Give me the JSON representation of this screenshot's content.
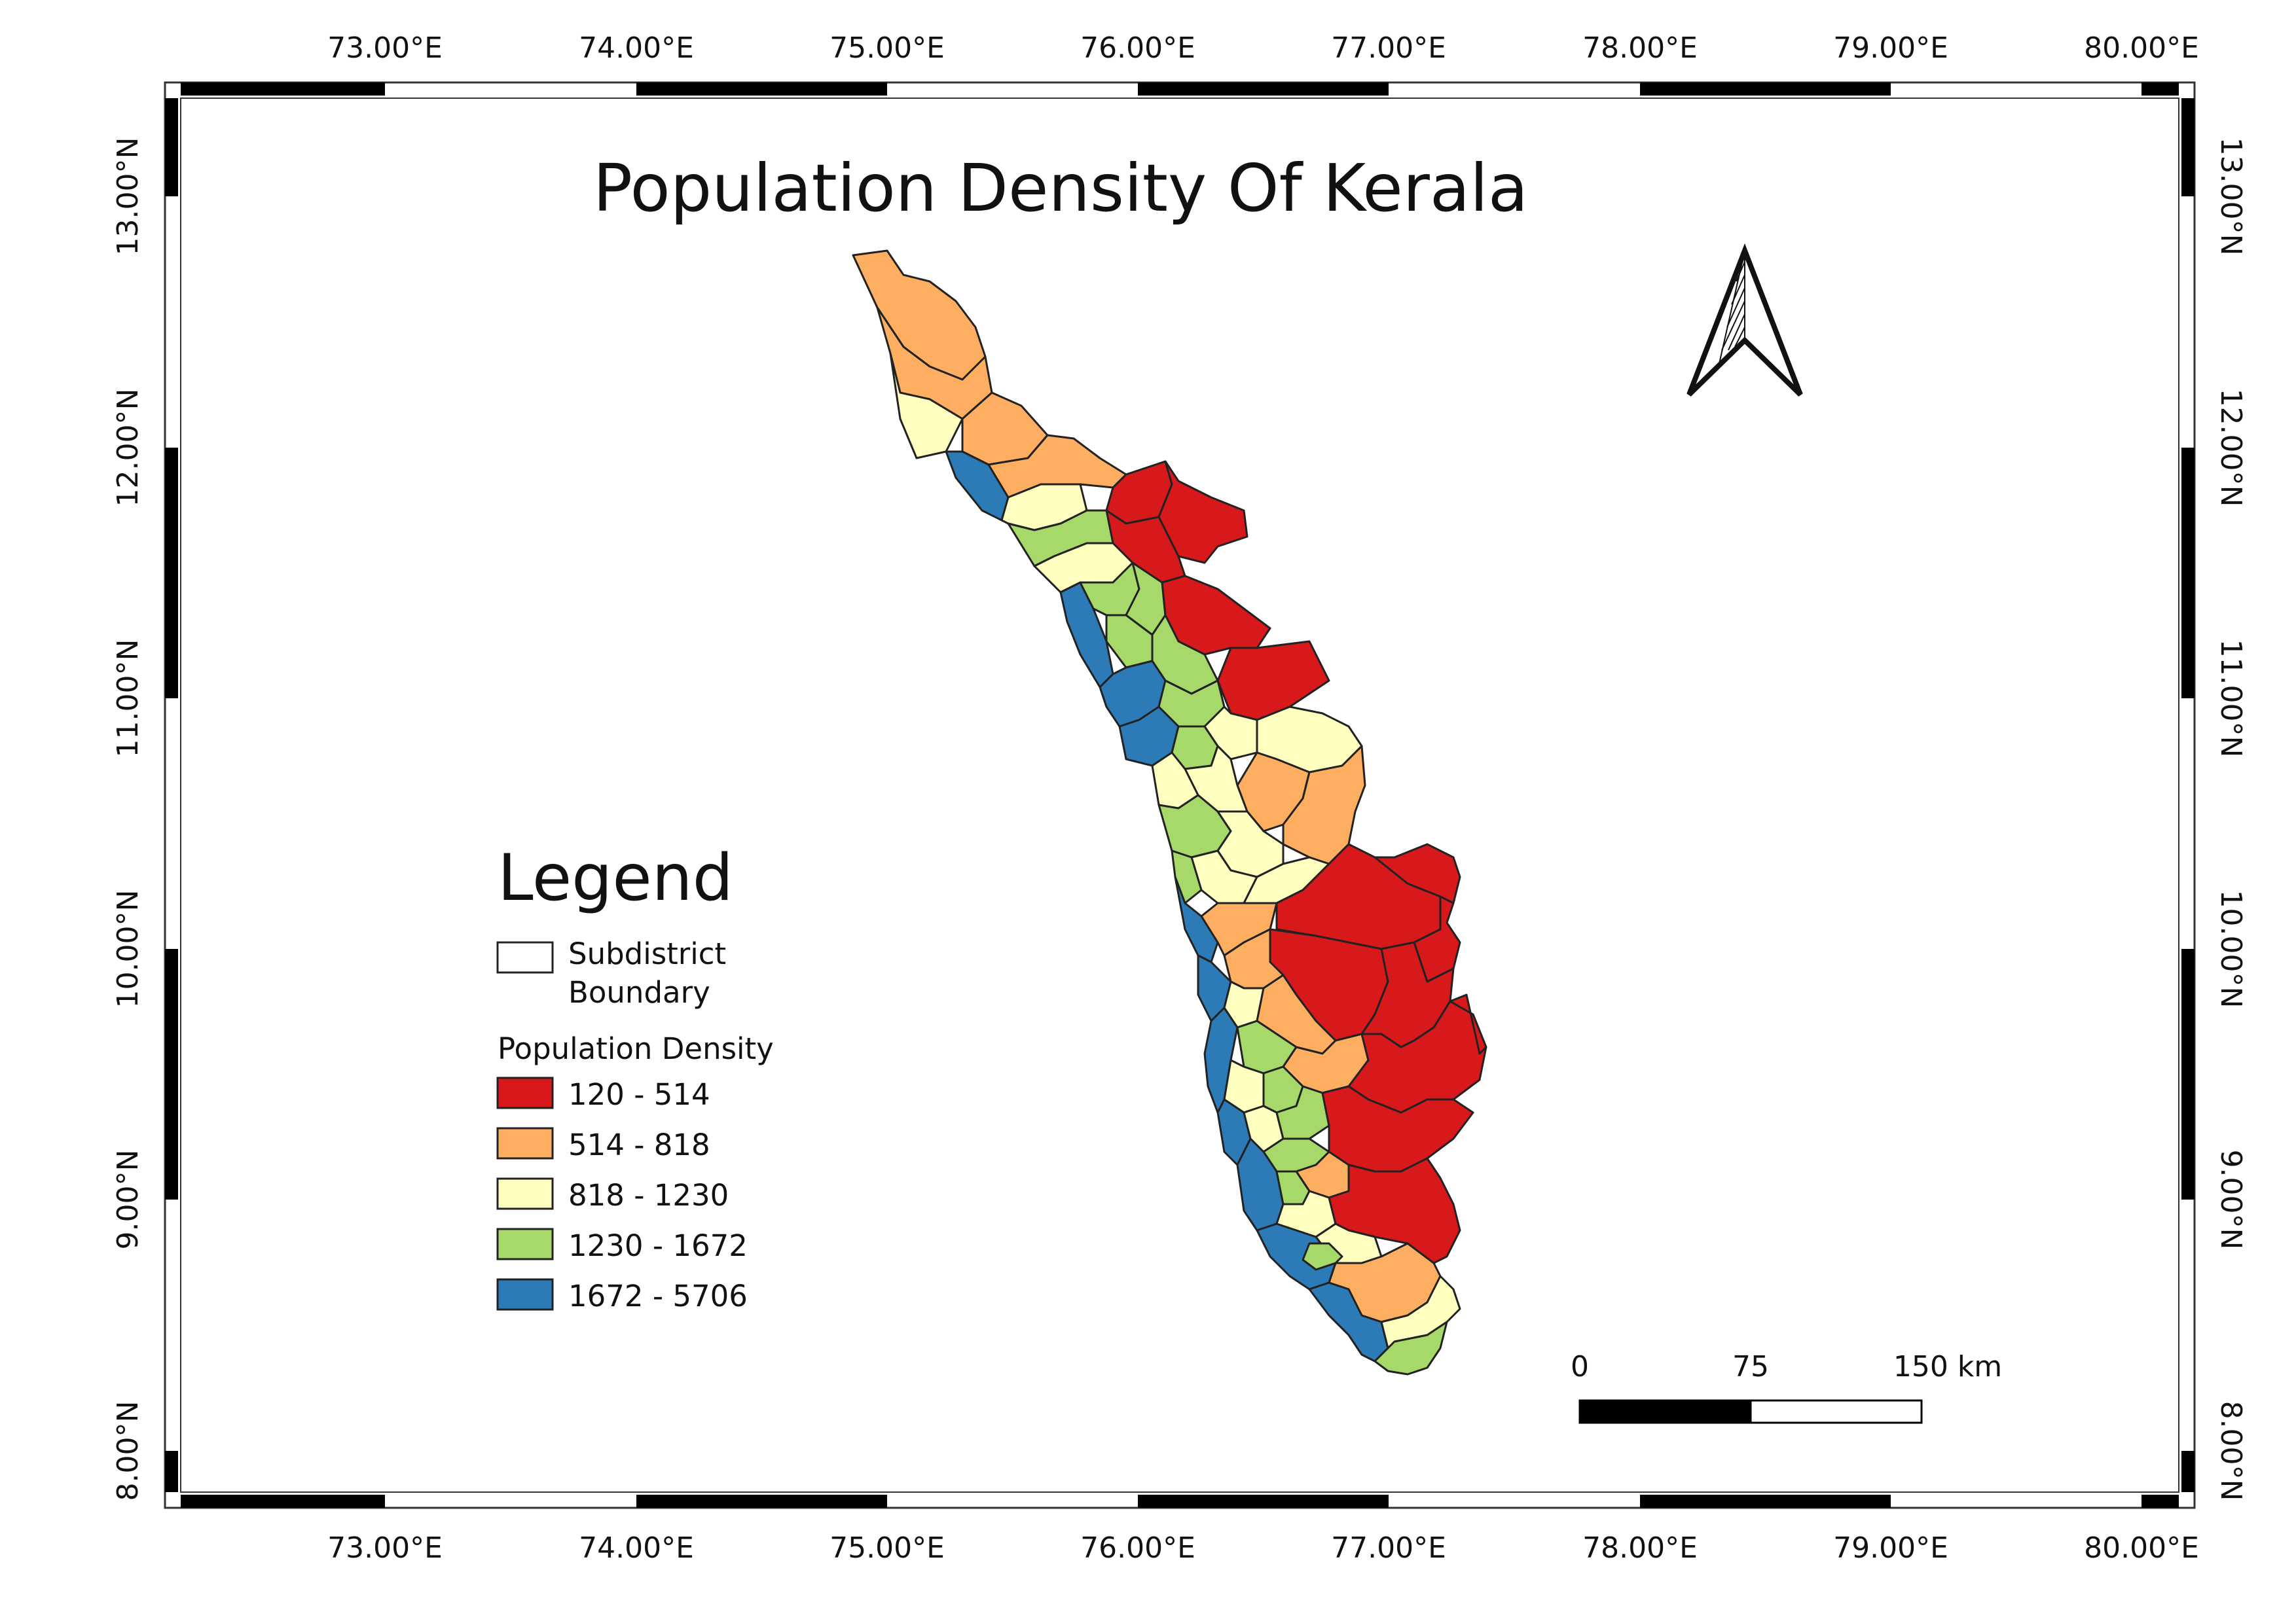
{
  "map": {
    "title": "Population Density Of Kerala",
    "grid_lon_labels": [
      "73.00°E",
      "74.00°E",
      "75.00°E",
      "76.00°E",
      "77.00°E",
      "78.00°E",
      "79.00°E",
      "80.00°E"
    ],
    "grid_lat_labels": [
      "13.00°N",
      "12.00°N",
      "11.00°N",
      "10.00°N",
      "9.00°N",
      "8.00°N"
    ]
  },
  "legend": {
    "heading": "Legend",
    "boundary_label_line1": "Subdistrict",
    "boundary_label_line2": "Boundary",
    "density_title": "Population Density",
    "classes": [
      {
        "label": "120 - 514",
        "color": "#d7191c"
      },
      {
        "label": "514 - 818",
        "color": "#fdae61"
      },
      {
        "label": "818 - 1230",
        "color": "#ffffc0"
      },
      {
        "label": "1230 - 1672",
        "color": "#a6d96a"
      },
      {
        "label": "1672 - 5706",
        "color": "#2c7bb6"
      }
    ]
  },
  "scale_bar": {
    "labels": [
      "0",
      "75",
      "150 km"
    ]
  },
  "north_arrow": {
    "icon": "north-arrow-icon"
  }
}
